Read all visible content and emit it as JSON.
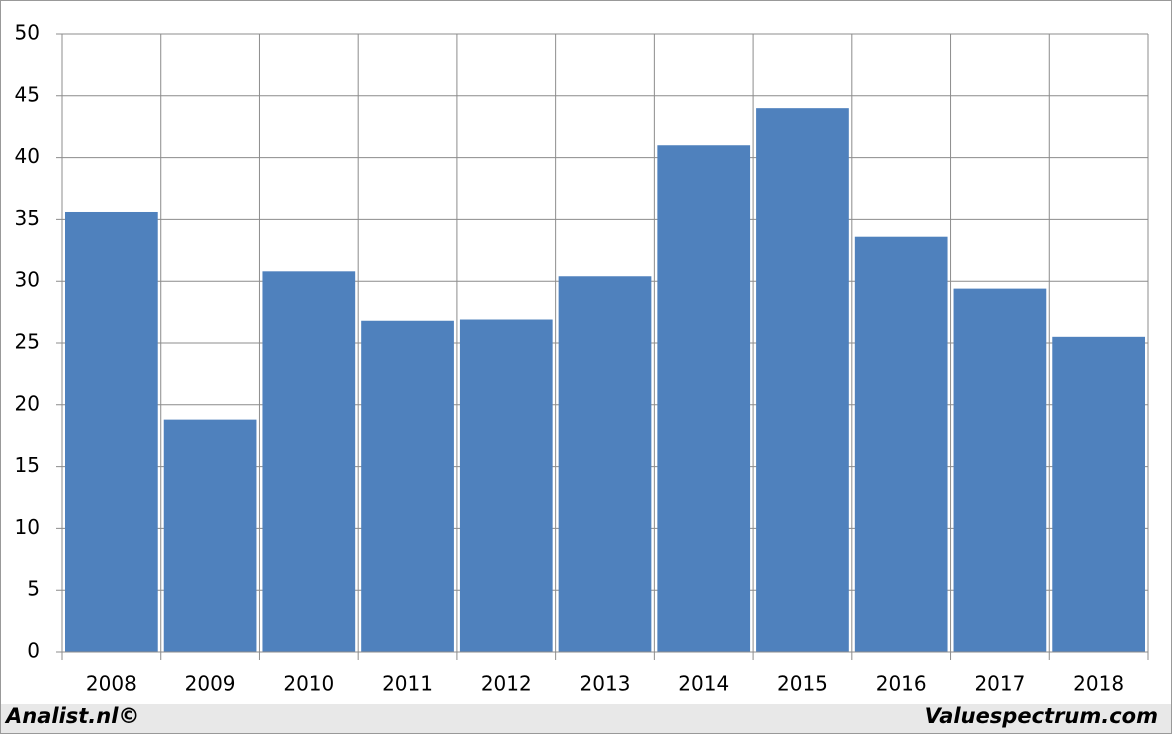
{
  "chart_data": {
    "type": "bar",
    "categories": [
      "2008",
      "2009",
      "2010",
      "2011",
      "2012",
      "2013",
      "2014",
      "2015",
      "2016",
      "2017",
      "2018"
    ],
    "values": [
      35.6,
      18.8,
      30.8,
      26.8,
      26.9,
      30.4,
      41,
      44,
      33.6,
      29.4,
      25.5
    ],
    "color": "#4f81bd",
    "ylim": [
      0,
      50
    ],
    "yticks": [
      0,
      5,
      10,
      15,
      20,
      25,
      30,
      35,
      40,
      45,
      50
    ],
    "grid": true,
    "footer_left": "Analist.nl©",
    "footer_right": "Valuespectrum.com"
  }
}
